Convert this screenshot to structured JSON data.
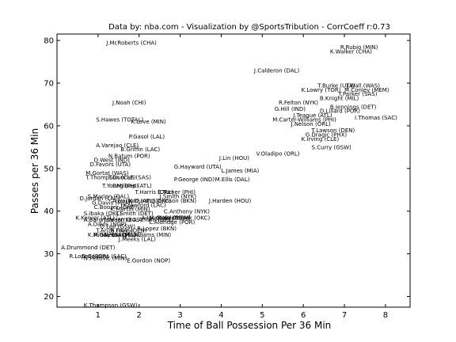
{
  "chart_data": {
    "type": "scatter",
    "title": "Data by: nba.com - Visualization by @SportsTribution - CorrCoeff r:0.73",
    "xlabel": "Time of Ball Possession Per 36 Min",
    "ylabel": "Passes per 36 Min",
    "xlim": [
      0,
      8.6
    ],
    "ylim": [
      17.5,
      81.5
    ],
    "xticks": [
      1,
      2,
      3,
      4,
      5,
      6,
      7,
      8
    ],
    "yticks": [
      20,
      30,
      40,
      50,
      60,
      70,
      80
    ],
    "grid": false,
    "highlight_color": "#ff0000",
    "default_color": "#000000",
    "points": [
      {
        "label": "J.McRoberts (CHA)",
        "x": 1.2,
        "y": 79,
        "highlight": true
      },
      {
        "label": "R.Rubio (MIN)",
        "x": 6.9,
        "y": 78
      },
      {
        "label": "K.Walker (CHA)",
        "x": 6.65,
        "y": 77
      },
      {
        "label": "J.Calderon (DAL)",
        "x": 4.8,
        "y": 72.5
      },
      {
        "label": "T.Burke (UTA)",
        "x": 6.35,
        "y": 69
      },
      {
        "label": "J.Wall (WAS)",
        "x": 7.05,
        "y": 69
      },
      {
        "label": "K.Lowry (TOR)",
        "x": 5.95,
        "y": 68
      },
      {
        "label": "M.Conley (MEM)",
        "x": 7.0,
        "y": 68
      },
      {
        "label": "T.Parker (SAS)",
        "x": 6.85,
        "y": 67
      },
      {
        "label": "B.Knight (MIL)",
        "x": 6.4,
        "y": 66
      },
      {
        "label": "J.Noah (CHI)",
        "x": 1.35,
        "y": 65
      },
      {
        "label": "R.Felton (NYK)",
        "x": 5.4,
        "y": 65
      },
      {
        "label": "B.Jennings (DET)",
        "x": 6.65,
        "y": 64
      },
      {
        "label": "G.Hill (IND)",
        "x": 5.3,
        "y": 63.5
      },
      {
        "label": "D.Lillard (POR)",
        "x": 6.4,
        "y": 63
      },
      {
        "label": "J.Teague (ATL)",
        "x": 5.75,
        "y": 62
      },
      {
        "label": "I.Thomas (SAC)",
        "x": 7.25,
        "y": 61.5
      },
      {
        "label": "S.Hawes (TOTAL)",
        "x": 0.95,
        "y": 61
      },
      {
        "label": "K.Love (MIN)",
        "x": 1.8,
        "y": 60.5
      },
      {
        "label": "M.Carter-Williams (PHI)",
        "x": 5.25,
        "y": 61
      },
      {
        "label": "J.Nelson (ORL)",
        "x": 5.7,
        "y": 60
      },
      {
        "label": "T.Lawson (DEN)",
        "x": 6.2,
        "y": 58.5
      },
      {
        "label": "G.Dragic (PHX)",
        "x": 6.05,
        "y": 57.5
      },
      {
        "label": "P.Gasol (LAL)",
        "x": 1.75,
        "y": 57
      },
      {
        "label": "K.Irving (CLE)",
        "x": 5.95,
        "y": 56.5
      },
      {
        "label": "A.Varejao (CLE)",
        "x": 0.95,
        "y": 55
      },
      {
        "label": "B.Griffin (LAC)",
        "x": 1.55,
        "y": 54
      },
      {
        "label": "S.Curry (GSW)",
        "x": 6.2,
        "y": 54.5
      },
      {
        "label": "V.Oladipo (ORL)",
        "x": 4.85,
        "y": 53
      },
      {
        "label": "N.Batum (POR)",
        "x": 1.25,
        "y": 52.5
      },
      {
        "label": "J.Lin (HOU)",
        "x": 3.95,
        "y": 52
      },
      {
        "label": "D.West (IND)",
        "x": 0.9,
        "y": 51.5
      },
      {
        "label": "D.Favors (UTA)",
        "x": 0.8,
        "y": 50.5
      },
      {
        "label": "G.Hayward (UTA)",
        "x": 2.85,
        "y": 50
      },
      {
        "label": "L.James (MIA)",
        "x": 4.0,
        "y": 49
      },
      {
        "label": "M.Gortat (WAS)",
        "x": 0.7,
        "y": 48.5
      },
      {
        "label": "T.Thompson (CLE)",
        "x": 0.7,
        "y": 47.5
      },
      {
        "label": "T.Duncan (SAS)",
        "x": 1.25,
        "y": 47.5
      },
      {
        "label": "P.George (IND)",
        "x": 2.85,
        "y": 47
      },
      {
        "label": "M.Ellis (DAL)",
        "x": 3.85,
        "y": 47
      },
      {
        "label": "T.Young (PHI)",
        "x": 1.1,
        "y": 45.5
      },
      {
        "label": "P.Millsap (ATL)",
        "x": 1.35,
        "y": 45.5
      },
      {
        "label": "T.Harris (ORL)",
        "x": 1.9,
        "y": 44
      },
      {
        "label": "E.Turner (PHI)",
        "x": 2.45,
        "y": 44
      },
      {
        "label": "S.Marion (DAL)",
        "x": 0.75,
        "y": 43
      },
      {
        "label": "D.Jordan (LAC)",
        "x": 0.55,
        "y": 42.5
      },
      {
        "label": "J.Smith (NYK)",
        "x": 2.5,
        "y": 43
      },
      {
        "label": "K.Durant (OKC)",
        "x": 1.75,
        "y": 42
      },
      {
        "label": "A.Horford (ATL)",
        "x": 1.35,
        "y": 42
      },
      {
        "label": "J.Johnson (BKN)",
        "x": 2.35,
        "y": 42
      },
      {
        "label": "G.Davis (MEM)",
        "x": 0.85,
        "y": 41.5
      },
      {
        "label": "J.Harden (HOU)",
        "x": 3.7,
        "y": 42
      },
      {
        "label": "C.Boozer (CHI)",
        "x": 0.9,
        "y": 40.5
      },
      {
        "label": "J.Crawford (LAC)",
        "x": 1.55,
        "y": 41
      },
      {
        "label": "K.Martin (MIN)",
        "x": 1.3,
        "y": 40
      },
      {
        "label": "C.Anthony (NYK)",
        "x": 2.6,
        "y": 39.5
      },
      {
        "label": "S.Ibaka (OKC)",
        "x": 0.65,
        "y": 39
      },
      {
        "label": "J.Smith (DET)",
        "x": 1.45,
        "y": 39
      },
      {
        "label": "K.Korver (ATL)",
        "x": 0.45,
        "y": 38
      },
      {
        "label": "A.Iguodala (GSW)",
        "x": 2.05,
        "y": 38
      },
      {
        "label": "M.Gasol (MEM)",
        "x": 2.25,
        "y": 38
      },
      {
        "label": "R.Westbrook (OKC)",
        "x": 2.45,
        "y": 38
      },
      {
        "label": "A.Bargnani (NYK)",
        "x": 0.65,
        "y": 37.5
      },
      {
        "label": "A.Afflalo (ORL)",
        "x": 1.85,
        "y": 37.5
      },
      {
        "label": "J.Green (BOS)",
        "x": 1.15,
        "y": 37.5
      },
      {
        "label": "L.Aldridge (POR)",
        "x": 2.25,
        "y": 37
      },
      {
        "label": "A.Davis (NOP)",
        "x": 0.75,
        "y": 36.5
      },
      {
        "label": "D.Lee (GSW)",
        "x": 1.05,
        "y": 36
      },
      {
        "label": "B.Lopez (BKN)",
        "x": 1.95,
        "y": 35.5
      },
      {
        "label": "T.Ariza (WAS)",
        "x": 0.95,
        "y": 35
      },
      {
        "label": "R.Foye (DEN)",
        "x": 1.3,
        "y": 35
      },
      {
        "label": "R.Gay (SAC)",
        "x": 0.9,
        "y": 34
      },
      {
        "label": "K.Middleton (MIL)",
        "x": 0.75,
        "y": 34
      },
      {
        "label": "N.Young (LAL)",
        "x": 1.15,
        "y": 34
      },
      {
        "label": "M.Williams (MIN)",
        "x": 1.65,
        "y": 34
      },
      {
        "label": "J.Meeks (LAL)",
        "x": 1.5,
        "y": 33
      },
      {
        "label": "A.Drummond (DET)",
        "x": 0.1,
        "y": 31
      },
      {
        "label": "R.Lopez (POR)",
        "x": 0.3,
        "y": 29
      },
      {
        "label": "D.Cousins (SAC)",
        "x": 0.6,
        "y": 29
      },
      {
        "label": "N.Pekovic (MIN)",
        "x": 0.65,
        "y": 28.5
      },
      {
        "label": "E.Gordon (NOP)",
        "x": 1.7,
        "y": 28
      },
      {
        "label": "K.Thompson (GSW)",
        "x": 0.65,
        "y": 17.5
      }
    ]
  }
}
